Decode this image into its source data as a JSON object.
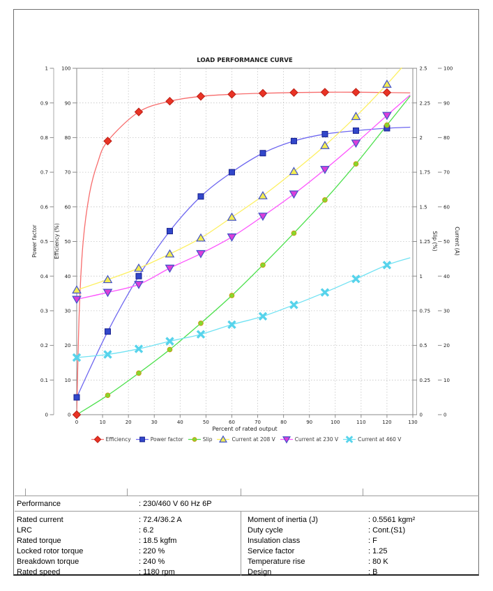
{
  "chart_data": {
    "type": "line",
    "title": "LOAD PERFORMANCE CURVE",
    "xlabel": "Percent of rated output",
    "x_axis": {
      "min": 0,
      "max": 130,
      "tick_labels": [
        "0",
        "10",
        "20",
        "30",
        "40",
        "50",
        "60",
        "70",
        "80",
        "90",
        "100",
        "110",
        "120",
        "130"
      ]
    },
    "grid": "dashed",
    "legend_position": "bottom",
    "axes": [
      {
        "id": "power_factor",
        "label": "Power factor",
        "side": "left-outer",
        "range": [
          0,
          1
        ],
        "tick_labels": [
          "1",
          "0.9",
          "0.8",
          "0.7",
          "0.6",
          "0.5",
          "0.4",
          "0.3",
          "0.2",
          "0.1",
          "0"
        ]
      },
      {
        "id": "efficiency",
        "label": "Efficiency (%)",
        "side": "left-inner",
        "range": [
          0,
          100
        ],
        "tick_labels": [
          "100",
          "90",
          "80",
          "70",
          "60",
          "50",
          "40",
          "30",
          "20",
          "10",
          "0"
        ]
      },
      {
        "id": "slip",
        "label": "Slip (%)",
        "side": "right-inner",
        "range": [
          0,
          2.5
        ],
        "tick_labels": [
          "2.5",
          "2.25",
          "2",
          "1.75",
          "1.5",
          "1.25",
          "1",
          "0.75",
          "0.5",
          "0.25",
          "0"
        ]
      },
      {
        "id": "current",
        "label": "Current (A)",
        "side": "right-outer",
        "range": [
          0,
          100
        ],
        "tick_labels": [
          "100",
          "90",
          "80",
          "70",
          "60",
          "50",
          "40",
          "30",
          "20",
          "10",
          "0"
        ]
      }
    ],
    "x": [
      0,
      12,
      24,
      36,
      48,
      60,
      72,
      84,
      96,
      108,
      120
    ],
    "series": [
      {
        "name": "Efficiency",
        "axis_max": 100,
        "marker": "diamond",
        "line_color": "#f76c6c",
        "fill": "#e93325",
        "edge": "#bb1e14",
        "values": [
          0,
          79,
          87.4,
          90.5,
          91.9,
          92.5,
          92.8,
          93,
          93.1,
          93.1,
          93
        ],
        "shape_pre": [
          [
            1,
            30
          ],
          [
            2.5,
            50
          ],
          [
            5,
            64
          ],
          [
            8,
            72.5
          ]
        ],
        "ext": [
          129,
          92.9
        ]
      },
      {
        "name": "Power factor",
        "axis_max": 1,
        "marker": "square",
        "line_color": "#6d66f0",
        "fill": "#3247ca",
        "edge": "#16208e",
        "values": [
          0.05,
          0.24,
          0.4,
          0.53,
          0.63,
          0.7,
          0.755,
          0.79,
          0.81,
          0.82,
          0.827
        ],
        "ext": [
          129,
          0.83
        ]
      },
      {
        "name": "Slip",
        "axis_max": 2.5,
        "marker": "circle",
        "line_color": "#4be04b",
        "fill": "#85d92c",
        "edge": "#cf9212",
        "values": [
          0,
          0.14,
          0.3,
          0.47,
          0.66,
          0.86,
          1.08,
          1.31,
          1.55,
          1.81,
          2.09
        ],
        "marker_from_index": 1,
        "ext": [
          129,
          2.3
        ]
      },
      {
        "name": "Current at 208 V",
        "axis_max": 100,
        "marker": "triangle-up",
        "line_color": "#fdf061",
        "fill": "#f3ec52",
        "edge": "#4152c8",
        "values": [
          36,
          39,
          42.3,
          46.4,
          51,
          57,
          63.2,
          70.2,
          77.7,
          86.1,
          95.4
        ],
        "ext": [
          129,
          103
        ]
      },
      {
        "name": "Current at 230 V",
        "axis_max": 100,
        "marker": "triangle-down",
        "line_color": "#fd54fd",
        "fill": "#da3eda",
        "edge": "#4152c8",
        "values": [
          33.3,
          35.3,
          37.6,
          42.3,
          46.5,
          51.3,
          57.3,
          63.7,
          70.8,
          78.4,
          86.4
        ],
        "ext": [
          129,
          92.3
        ]
      },
      {
        "name": "Current at 460 V",
        "axis_max": 100,
        "marker": "x",
        "line_color": "#70e2f3",
        "fill": "#57d3eb",
        "edge": "#57d3eb",
        "values": [
          16.5,
          17.4,
          19,
          21.2,
          23.2,
          26,
          28.4,
          31.7,
          35.3,
          39.2,
          43.2
        ],
        "ext": [
          129,
          45.3
        ]
      }
    ]
  },
  "table": {
    "performance_label": "Performance",
    "performance_value": ": 230/460 V 60 Hz 6P",
    "left_rows": [
      {
        "label": "Rated current",
        "value": ": 72.4/36.2 A"
      },
      {
        "label": "LRC",
        "value": ": 6.2"
      },
      {
        "label": "Rated torque",
        "value": ": 18.5 kgfm"
      },
      {
        "label": "Locked rotor torque",
        "value": ": 220 %"
      },
      {
        "label": "Breakdown torque",
        "value": ": 240 %"
      },
      {
        "label": "Rated speed",
        "value": ": 1180 rpm"
      }
    ],
    "right_rows": [
      {
        "label": "Moment of inertia (J)",
        "value": ": 0.5561 kgm²"
      },
      {
        "label": "Duty cycle",
        "value": ": Cont.(S1)"
      },
      {
        "label": "Insulation class",
        "value": ": F"
      },
      {
        "label": "Service factor",
        "value": ": 1.25"
      },
      {
        "label": "Temperature rise",
        "value": ": 80 K"
      },
      {
        "label": "Design",
        "value": ": B"
      }
    ]
  }
}
